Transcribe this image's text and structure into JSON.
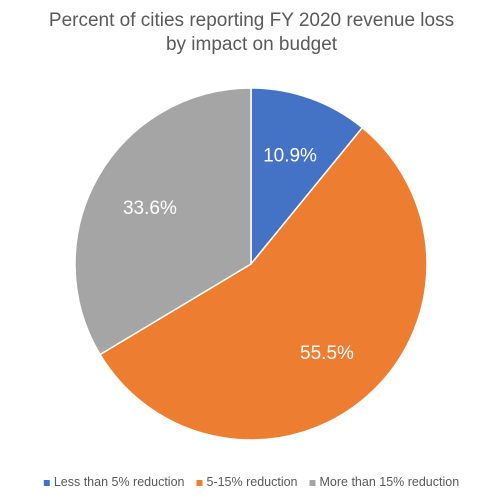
{
  "chart_data": {
    "type": "pie",
    "title_lines": [
      "Percent of cities reporting FY 2020 revenue loss",
      "by impact on budget"
    ],
    "slices": [
      {
        "name": "Less than 5% reduction",
        "value": 10.9,
        "label": "10.9%",
        "color": "#4472C4"
      },
      {
        "name": "5-15% reduction",
        "value": 55.5,
        "label": "55.5%",
        "color": "#ED7D31"
      },
      {
        "name": "More than 15% reduction",
        "value": 33.6,
        "label": "33.6%",
        "color": "#A5A5A5"
      }
    ],
    "start": "12 o'clock",
    "direction": "clockwise",
    "legend_position": "bottom"
  }
}
